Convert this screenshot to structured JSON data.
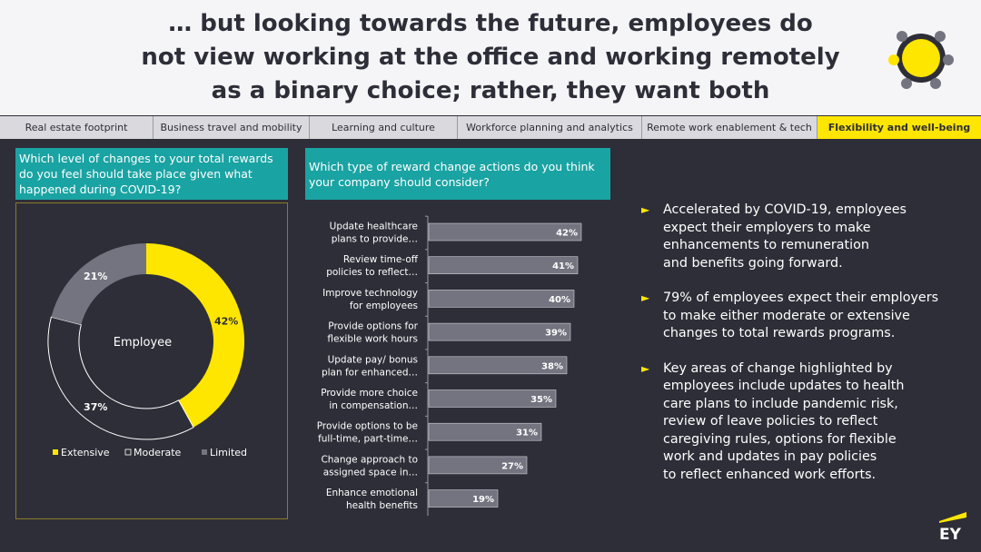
{
  "title": {
    "lines": [
      "… but looking towards the future, employees do",
      "not view working at the office and working remotely",
      "as a binary choice; rather, they want both"
    ]
  },
  "tabs": [
    {
      "label": "Real estate footprint",
      "active": false
    },
    {
      "label": "Business travel and mobility",
      "active": false
    },
    {
      "label": "Learning and culture",
      "active": false
    },
    {
      "label": "Workforce planning and analytics",
      "active": false
    },
    {
      "label": "Remote work enablement & tech",
      "active": false
    },
    {
      "label": "Flexibility and well-being",
      "active": true
    }
  ],
  "left_question": "Which level of changes to your total rewards do you feel should take place given what happened during COVID-19?",
  "right_question": "Which type of reward change actions do you think your company should consider?",
  "colors": {
    "yellow": "#ffe600",
    "dark": "#2e2e38",
    "grey": "#747480",
    "teal": "#1aa3a3",
    "bar": "#747480"
  },
  "chart_data": [
    {
      "type": "pie",
      "subtype": "donut",
      "center_label": "Employee",
      "categories": [
        "Extensive",
        "Moderate",
        "Limited"
      ],
      "values": [
        42,
        37,
        21
      ],
      "value_labels": [
        "42%",
        "37%",
        "21%"
      ],
      "legend": [
        "Extensive",
        "Moderate",
        "Limited"
      ],
      "legend_position": "bottom"
    },
    {
      "type": "bar",
      "orientation": "horizontal",
      "categories": [
        [
          "Update healthcare",
          "plans to provide…"
        ],
        [
          "Review time-off",
          "policies to reflect…"
        ],
        [
          "Improve technology",
          "for employees"
        ],
        [
          "Provide options for",
          "flexible work hours"
        ],
        [
          "Update pay/ bonus",
          "plan for enhanced…"
        ],
        [
          "Provide more choice",
          "in compensation…"
        ],
        [
          "Provide options to be",
          "full-time, part-time…"
        ],
        [
          "Change approach to",
          "assigned space in…"
        ],
        [
          "Enhance emotional",
          "health benefits"
        ]
      ],
      "values": [
        42,
        41,
        40,
        39,
        38,
        35,
        31,
        27,
        19
      ],
      "value_labels": [
        "42%",
        "41%",
        "40%",
        "39%",
        "38%",
        "35%",
        "31%",
        "27%",
        "19%"
      ],
      "xlim": [
        0,
        45
      ],
      "grid": false
    }
  ],
  "bullets": [
    [
      "Accelerated by COVID-19, employees",
      "expect their employers to make",
      "enhancements to remuneration",
      "and benefits going forward."
    ],
    [
      "79% of employees expect their employers",
      "to make either moderate or extensive",
      "changes to total rewards programs."
    ],
    [
      "Key areas of change highlighted by",
      "employees include updates to health",
      "care plans to include pandemic risk,",
      "review of leave policies to reflect",
      "caregiving rules, options for flexible",
      "work and updates in pay policies",
      "to reflect enhanced work efforts."
    ]
  ],
  "logo": "EY"
}
